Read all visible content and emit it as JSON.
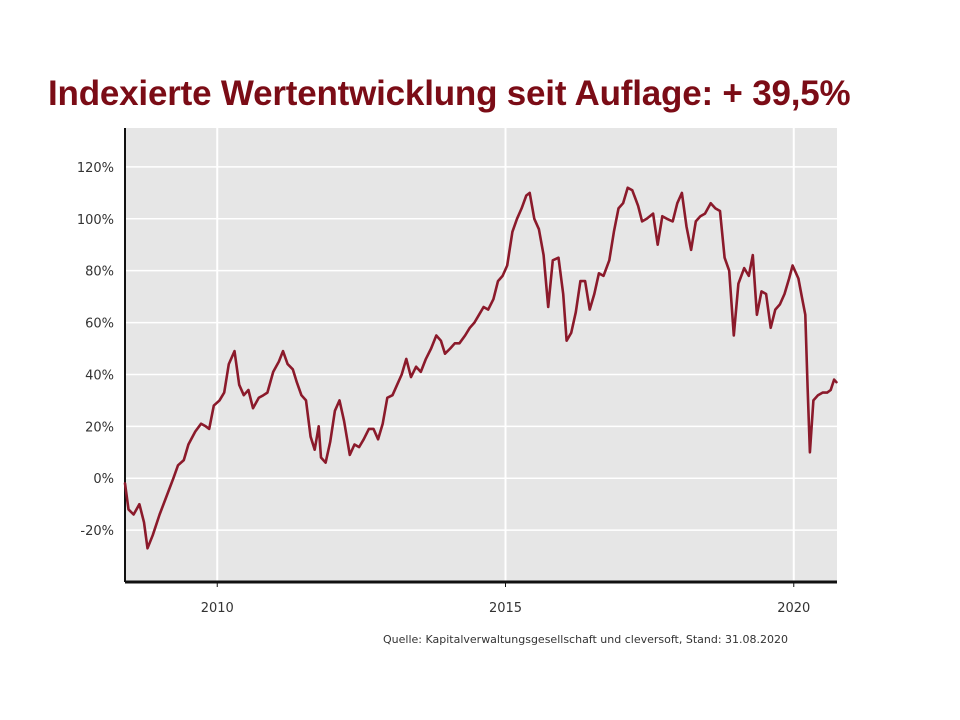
{
  "title": "Indexierte Wertentwicklung seit Auflage: + 39,5%",
  "source_note": "Quelle: Kapitalverwaltungsgesellschaft und cleversoft, Stand: 31.08.2020",
  "colors": {
    "title": "#7b0c16",
    "line": "#8b1a2b",
    "plot_background": "#e6e6e6",
    "grid": "#ffffff",
    "axis": "#111111"
  },
  "chart_data": {
    "type": "line",
    "title": "Indexierte Wertentwicklung seit Auflage: + 39,5%",
    "xlabel": "",
    "ylabel": "",
    "x_ticks": [
      2010,
      2015,
      2020
    ],
    "x_tick_labels": [
      "2010",
      "2015",
      "2020"
    ],
    "y_ticks": [
      -20,
      0,
      20,
      40,
      60,
      80,
      100,
      120
    ],
    "y_tick_labels": [
      "-20%",
      "0%",
      "20%",
      "40%",
      "60%",
      "80%",
      "100%",
      "120%"
    ],
    "xlim": [
      2008.4,
      2020.75
    ],
    "ylim": [
      -40,
      135
    ],
    "grid": true,
    "legend": "none",
    "series": [
      {
        "values": [
          [
            2008.4,
            -2
          ],
          [
            2008.46,
            -12
          ],
          [
            2008.55,
            -14
          ],
          [
            2008.65,
            -10
          ],
          [
            2008.73,
            -17
          ],
          [
            2008.79,
            -27
          ],
          [
            2008.88,
            -22
          ],
          [
            2009.0,
            -14
          ],
          [
            2009.12,
            -7
          ],
          [
            2009.24,
            0
          ],
          [
            2009.32,
            5
          ],
          [
            2009.42,
            7
          ],
          [
            2009.5,
            13
          ],
          [
            2009.62,
            18
          ],
          [
            2009.72,
            21
          ],
          [
            2009.8,
            20
          ],
          [
            2009.86,
            19
          ],
          [
            2009.94,
            28
          ],
          [
            2010.04,
            30
          ],
          [
            2010.12,
            33
          ],
          [
            2010.2,
            44
          ],
          [
            2010.3,
            49
          ],
          [
            2010.38,
            36
          ],
          [
            2010.46,
            32
          ],
          [
            2010.54,
            34
          ],
          [
            2010.62,
            27
          ],
          [
            2010.72,
            31
          ],
          [
            2010.8,
            32
          ],
          [
            2010.87,
            33
          ],
          [
            2010.97,
            41
          ],
          [
            2011.07,
            45
          ],
          [
            2011.14,
            49
          ],
          [
            2011.22,
            44
          ],
          [
            2011.31,
            42
          ],
          [
            2011.38,
            37
          ],
          [
            2011.46,
            32
          ],
          [
            2011.54,
            30
          ],
          [
            2011.62,
            16
          ],
          [
            2011.69,
            11
          ],
          [
            2011.76,
            20
          ],
          [
            2011.8,
            8
          ],
          [
            2011.88,
            6
          ],
          [
            2011.96,
            14
          ],
          [
            2012.04,
            26
          ],
          [
            2012.12,
            30
          ],
          [
            2012.2,
            22
          ],
          [
            2012.3,
            9
          ],
          [
            2012.38,
            13
          ],
          [
            2012.46,
            12
          ],
          [
            2012.54,
            15
          ],
          [
            2012.63,
            19
          ],
          [
            2012.71,
            19
          ],
          [
            2012.79,
            15
          ],
          [
            2012.87,
            21
          ],
          [
            2012.95,
            31
          ],
          [
            2013.04,
            32
          ],
          [
            2013.12,
            36
          ],
          [
            2013.2,
            40
          ],
          [
            2013.28,
            46
          ],
          [
            2013.36,
            39
          ],
          [
            2013.45,
            43
          ],
          [
            2013.53,
            41
          ],
          [
            2013.62,
            46
          ],
          [
            2013.71,
            50
          ],
          [
            2013.8,
            55
          ],
          [
            2013.88,
            53
          ],
          [
            2013.95,
            48
          ],
          [
            2014.04,
            50
          ],
          [
            2014.12,
            52
          ],
          [
            2014.2,
            52
          ],
          [
            2014.3,
            55
          ],
          [
            2014.38,
            58
          ],
          [
            2014.46,
            60
          ],
          [
            2014.54,
            63
          ],
          [
            2014.62,
            66
          ],
          [
            2014.7,
            65
          ],
          [
            2014.79,
            69
          ],
          [
            2014.87,
            76
          ],
          [
            2014.95,
            78
          ],
          [
            2015.03,
            82
          ],
          [
            2015.12,
            95
          ],
          [
            2015.2,
            100
          ],
          [
            2015.28,
            104
          ],
          [
            2015.36,
            109
          ],
          [
            2015.42,
            110
          ],
          [
            2015.5,
            100
          ],
          [
            2015.58,
            96
          ],
          [
            2015.66,
            86
          ],
          [
            2015.74,
            66
          ],
          [
            2015.82,
            84
          ],
          [
            2015.92,
            85
          ],
          [
            2016.0,
            71
          ],
          [
            2016.06,
            53
          ],
          [
            2016.14,
            56
          ],
          [
            2016.22,
            64
          ],
          [
            2016.3,
            76
          ],
          [
            2016.38,
            76
          ],
          [
            2016.46,
            65
          ],
          [
            2016.54,
            71
          ],
          [
            2016.62,
            79
          ],
          [
            2016.7,
            78
          ],
          [
            2016.8,
            84
          ],
          [
            2016.88,
            95
          ],
          [
            2016.96,
            104
          ],
          [
            2017.04,
            106
          ],
          [
            2017.12,
            112
          ],
          [
            2017.2,
            111
          ],
          [
            2017.3,
            105
          ],
          [
            2017.37,
            99
          ],
          [
            2017.45,
            100
          ],
          [
            2017.56,
            102
          ],
          [
            2017.64,
            90
          ],
          [
            2017.72,
            101
          ],
          [
            2017.8,
            100
          ],
          [
            2017.9,
            99
          ],
          [
            2017.98,
            106
          ],
          [
            2018.06,
            110
          ],
          [
            2018.14,
            97
          ],
          [
            2018.22,
            88
          ],
          [
            2018.3,
            99
          ],
          [
            2018.38,
            101
          ],
          [
            2018.46,
            102
          ],
          [
            2018.56,
            106
          ],
          [
            2018.64,
            104
          ],
          [
            2018.72,
            103
          ],
          [
            2018.8,
            85
          ],
          [
            2018.88,
            80
          ],
          [
            2018.96,
            55
          ],
          [
            2019.04,
            75
          ],
          [
            2019.14,
            81
          ],
          [
            2019.22,
            78
          ],
          [
            2019.29,
            86
          ],
          [
            2019.36,
            63
          ],
          [
            2019.44,
            72
          ],
          [
            2019.52,
            71
          ],
          [
            2019.6,
            58
          ],
          [
            2019.68,
            65
          ],
          [
            2019.76,
            67
          ],
          [
            2019.84,
            71
          ],
          [
            2019.92,
            77
          ],
          [
            2019.98,
            82
          ],
          [
            2020.08,
            77
          ],
          [
            2020.14,
            70
          ],
          [
            2020.2,
            63
          ],
          [
            2020.24,
            35
          ],
          [
            2020.28,
            10
          ],
          [
            2020.34,
            30
          ],
          [
            2020.42,
            32
          ],
          [
            2020.5,
            33
          ],
          [
            2020.58,
            33
          ],
          [
            2020.64,
            34
          ],
          [
            2020.7,
            38
          ],
          [
            2020.74,
            37
          ]
        ]
      }
    ]
  }
}
